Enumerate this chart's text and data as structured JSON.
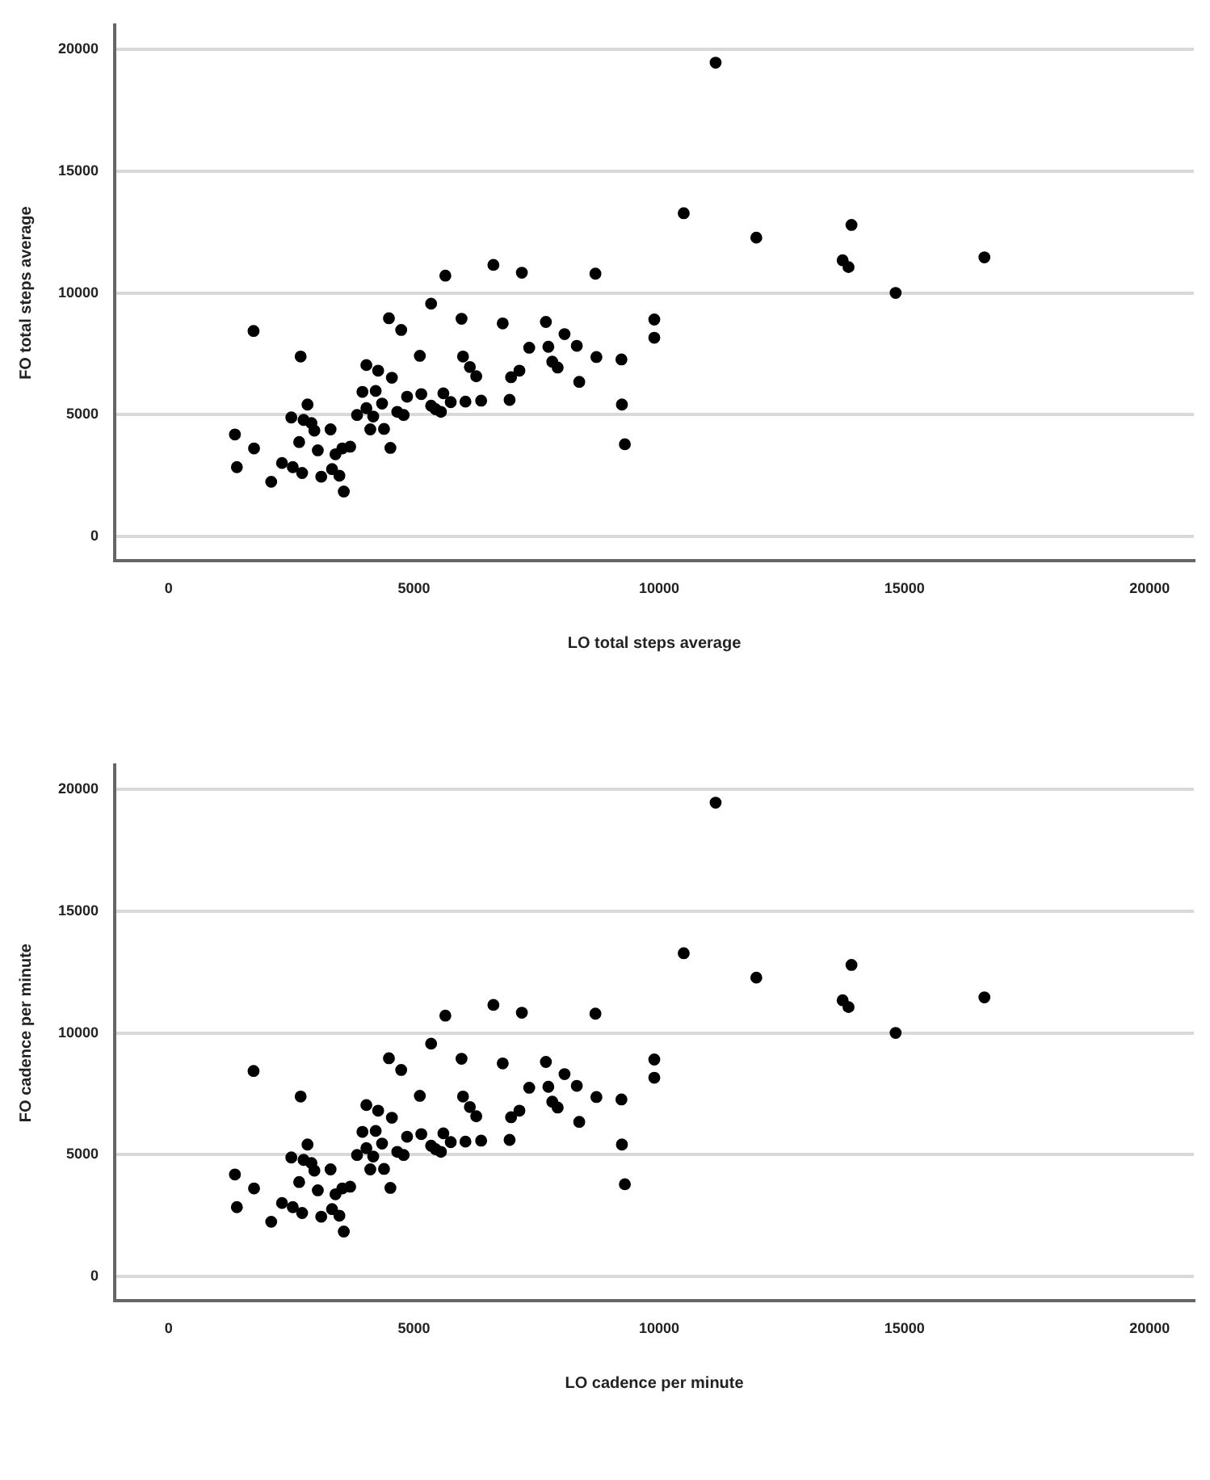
{
  "chart_data": [
    {
      "type": "scatter",
      "xlabel": "LO total steps average",
      "ylabel": "FO total steps average",
      "xlim": [
        -1100,
        20900
      ],
      "ylim": [
        -1000,
        21000
      ],
      "xticks": [
        0,
        5000,
        10000,
        15000,
        20000
      ],
      "yticks": [
        0,
        5000,
        10000,
        15000,
        20000
      ],
      "grid": "y",
      "marker": "circle",
      "series": [
        {
          "color": "#000000",
          "x": [
            4490,
            4740,
            1730,
            5120,
            2690,
            4030,
            4270,
            4550,
            3950,
            4220,
            5150,
            4860,
            2830,
            4350,
            4030,
            3840,
            4660,
            4790,
            2500,
            2750,
            2910,
            2970,
            3300,
            4170,
            4110,
            4390,
            1350,
            2660,
            1740,
            3040,
            3400,
            3540,
            3700,
            4520,
            1390,
            2310,
            2530,
            2720,
            2090,
            3110,
            3330,
            3480,
            3570,
            6620,
            5640,
            7200,
            8700,
            5350,
            5970,
            6810,
            7690,
            9900,
            9900,
            8070,
            6000,
            7350,
            7740,
            8320,
            8720,
            9230,
            6140,
            6270,
            7150,
            6980,
            7820,
            7930,
            8370,
            5600,
            5350,
            5440,
            5550,
            5750,
            6050,
            6370,
            6950,
            9240,
            9300,
            11150,
            10500,
            11980,
            13920,
            13740,
            13860,
            16630,
            14820
          ],
          "values": [
            8960,
            8480,
            8440,
            7420,
            7390,
            7040,
            6810,
            6520,
            5940,
            5980,
            5850,
            5740,
            5420,
            5460,
            5270,
            4990,
            5120,
            4990,
            4890,
            4790,
            4660,
            4350,
            4400,
            4930,
            4400,
            4420,
            4190,
            3880,
            3620,
            3540,
            3380,
            3620,
            3690,
            3640,
            2850,
            3020,
            2850,
            2610,
            2250,
            2460,
            2770,
            2500,
            1850,
            11150,
            10710,
            10830,
            10790,
            9560,
            8940,
            8750,
            8810,
            8910,
            8160,
            8310,
            7390,
            7750,
            7790,
            7830,
            7370,
            7270,
            6960,
            6580,
            6810,
            6540,
            7180,
            6940,
            6350,
            5880,
            5370,
            5230,
            5120,
            5520,
            5540,
            5580,
            5610,
            5420,
            3790,
            19450,
            13270,
            12270,
            12790,
            11340,
            11060,
            11460,
            10000
          ]
        }
      ]
    },
    {
      "type": "scatter",
      "xlabel": "LO cadence per minute",
      "ylabel": "FO cadence per minute",
      "xlim": [
        -1100,
        20900
      ],
      "ylim": [
        -1000,
        21000
      ],
      "xticks": [
        0,
        5000,
        10000,
        15000,
        20000
      ],
      "yticks": [
        0,
        5000,
        10000,
        15000,
        20000
      ],
      "grid": "y",
      "marker": "circle",
      "series": [
        {
          "color": "#000000",
          "x": [
            4490,
            4740,
            1730,
            5120,
            2690,
            4030,
            4270,
            4550,
            3950,
            4220,
            5150,
            4860,
            2830,
            4350,
            4030,
            3840,
            4660,
            4790,
            2500,
            2750,
            2910,
            2970,
            3300,
            4170,
            4110,
            4390,
            1350,
            2660,
            1740,
            3040,
            3400,
            3540,
            3700,
            4520,
            1390,
            2310,
            2530,
            2720,
            2090,
            3110,
            3330,
            3480,
            3570,
            6620,
            5640,
            7200,
            8700,
            5350,
            5970,
            6810,
            7690,
            9900,
            9900,
            8070,
            6000,
            7350,
            7740,
            8320,
            8720,
            9230,
            6140,
            6270,
            7150,
            6980,
            7820,
            7930,
            8370,
            5600,
            5350,
            5440,
            5550,
            5750,
            6050,
            6370,
            6950,
            9240,
            9300,
            11150,
            10500,
            11980,
            13920,
            13740,
            13860,
            16630,
            14820
          ],
          "values": [
            8960,
            8480,
            8440,
            7420,
            7390,
            7040,
            6810,
            6520,
            5940,
            5980,
            5850,
            5740,
            5420,
            5460,
            5270,
            4990,
            5120,
            4990,
            4890,
            4790,
            4660,
            4350,
            4400,
            4930,
            4400,
            4420,
            4190,
            3880,
            3620,
            3540,
            3380,
            3620,
            3690,
            3640,
            2850,
            3020,
            2850,
            2610,
            2250,
            2460,
            2770,
            2500,
            1850,
            11150,
            10710,
            10830,
            10790,
            9560,
            8940,
            8750,
            8810,
            8910,
            8160,
            8310,
            7390,
            7750,
            7790,
            7830,
            7370,
            7270,
            6960,
            6580,
            6810,
            6540,
            7180,
            6940,
            6350,
            5880,
            5370,
            5230,
            5120,
            5520,
            5540,
            5580,
            5610,
            5420,
            3790,
            19450,
            13270,
            12270,
            12790,
            11340,
            11060,
            11460,
            10000
          ]
        }
      ]
    }
  ]
}
